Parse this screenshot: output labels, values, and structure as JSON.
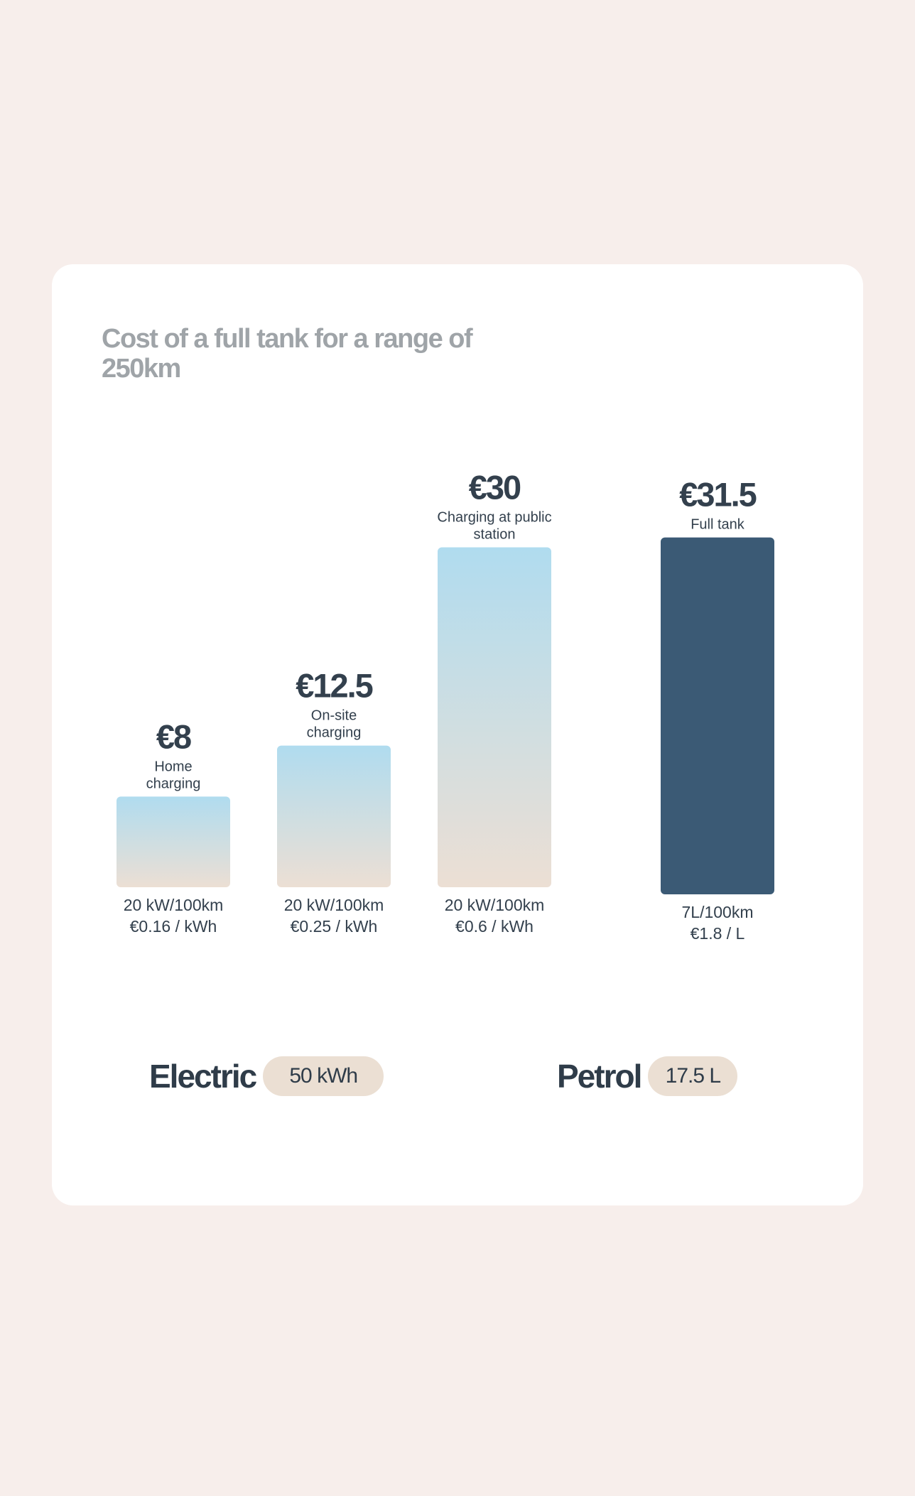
{
  "chart_data": {
    "type": "bar",
    "title": "Cost of a full tank for a range of 250km",
    "categories": [
      "Home charging",
      "On-site charging",
      "Charging at public station",
      "Full tank"
    ],
    "value_labels": [
      "€8",
      "€12.5",
      "€30",
      "€31.5"
    ],
    "values": [
      8,
      12.5,
      30,
      31.5
    ],
    "specs": [
      [
        "20 kW/100km",
        "€0.16 / kWh"
      ],
      [
        "20 kW/100km",
        "€0.25 / kWh"
      ],
      [
        "20 kW/100km",
        "€0.6 / kWh"
      ],
      [
        "7L/100km",
        "€1.8 / L"
      ]
    ],
    "groups": [
      {
        "name": "Electric",
        "capacity": "50 kWh",
        "bars": [
          0,
          1,
          2
        ]
      },
      {
        "name": "Petrol",
        "capacity": "17.5 L",
        "bars": [
          3
        ]
      }
    ],
    "colors": {
      "electric_top": "#b0dcef",
      "electric_bottom": "#ecdfd4",
      "petrol": "#3b5a75",
      "text": "#33404d",
      "title": "#9fa4a8",
      "pill": "#ebdfd3"
    }
  }
}
